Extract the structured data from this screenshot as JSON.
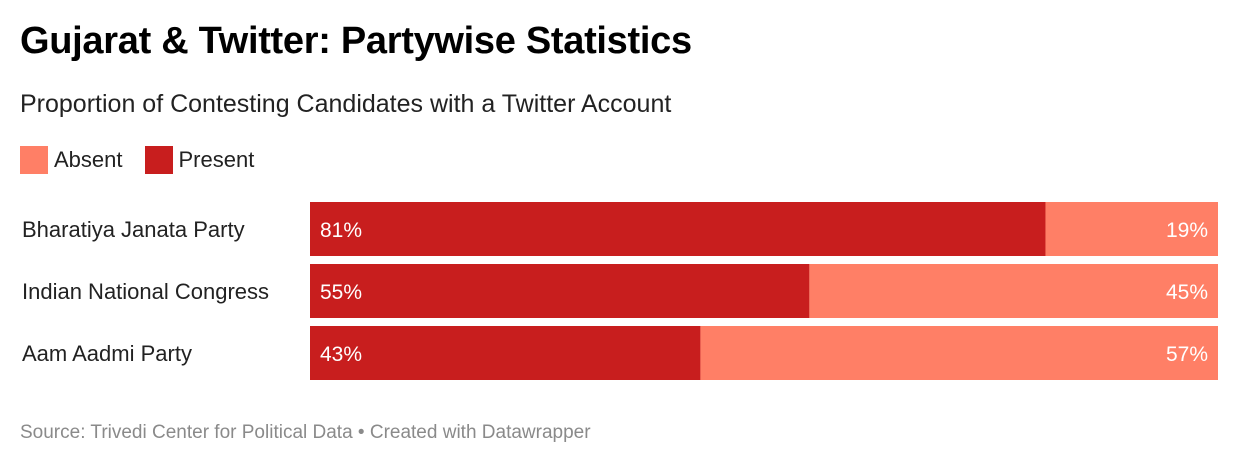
{
  "title": "Gujarat & Twitter: Partywise Statistics",
  "subtitle": "Proportion of Contesting Candidates with a Twitter Account",
  "source": "Source: Trivedi Center for Political Data • Created with Datawrapper",
  "legend": [
    {
      "label": "Absent",
      "color": "#ff7f66"
    },
    {
      "label": "Present",
      "color": "#c81e1e"
    }
  ],
  "chart_data": {
    "type": "bar",
    "orientation": "horizontal",
    "stacked": true,
    "categories": [
      "Bharatiya Janata Party",
      "Indian National Congress",
      "Aam Aadmi Party"
    ],
    "series": [
      {
        "name": "Present",
        "values": [
          81,
          55,
          43
        ],
        "labels": [
          "81%",
          "55%",
          "43%"
        ],
        "color": "#c81e1e"
      },
      {
        "name": "Absent",
        "values": [
          19,
          45,
          57
        ],
        "labels": [
          "19%",
          "45%",
          "57%"
        ],
        "color": "#ff7f66"
      }
    ],
    "xlim": [
      0,
      100
    ],
    "grid": false,
    "legend_position": "top-left"
  }
}
